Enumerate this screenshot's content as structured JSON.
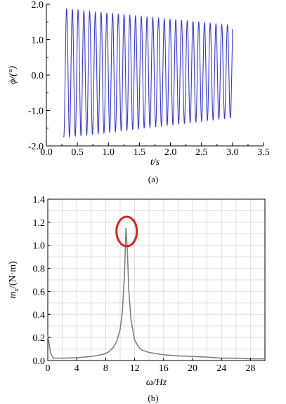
{
  "chart_data": [
    {
      "type": "line",
      "caption": "(a)",
      "xlabel": "t/s",
      "ylabel": "ϕ/(°)",
      "xlim": [
        0.0,
        3.5
      ],
      "ylim": [
        -2.0,
        2.0
      ],
      "xticks": [
        "0.0",
        "0.5",
        "1.0",
        "1.5",
        "2.0",
        "2.5",
        "3.0",
        "3.5"
      ],
      "yticks": [
        "-2.0",
        "-1.0",
        "0.0",
        "1.0",
        "2.0"
      ],
      "grid": false,
      "color": "#3a3ad8",
      "series": [
        {
          "t_start": 0.28,
          "t_end": 3.0,
          "initial_value": -1.72,
          "frequency_hz": 10.8,
          "amplitude_start": 1.82,
          "amplitude_end": 1.3,
          "offset_start": 0.05,
          "offset_end": 0.1,
          "final_value": 1.3
        }
      ]
    },
    {
      "type": "line",
      "caption": "(b)",
      "xlabel": "ω/Hz",
      "ylabel": "m_x/(N·m)",
      "xlim": [
        0,
        30
      ],
      "ylim": [
        0.0,
        1.4
      ],
      "xticks": [
        "0",
        "4",
        "8",
        "12",
        "16",
        "20",
        "24",
        "28"
      ],
      "yticks": [
        "0.0",
        "0.2",
        "0.4",
        "0.6",
        "0.8",
        "1.0",
        "1.2",
        "1.4"
      ],
      "grid": true,
      "color": "#808080",
      "annotation_color": "#e02020",
      "series": [
        {
          "x": [
            0,
            0.4,
            0.8,
            2,
            4,
            6,
            7,
            8,
            8.5,
            9,
            9.5,
            10,
            10.3,
            10.6,
            10.8,
            11.0,
            11.2,
            11.5,
            12,
            12.5,
            13,
            14,
            16,
            18,
            20,
            22,
            24,
            26,
            28,
            30
          ],
          "y": [
            0.22,
            0.06,
            0.02,
            0.02,
            0.025,
            0.035,
            0.045,
            0.06,
            0.08,
            0.11,
            0.16,
            0.27,
            0.42,
            0.75,
            1.15,
            0.95,
            0.6,
            0.35,
            0.18,
            0.12,
            0.09,
            0.07,
            0.05,
            0.04,
            0.035,
            0.03,
            0.02,
            0.02,
            0.015,
            0.015
          ]
        }
      ],
      "highlight": {
        "x": 10.9,
        "y": 1.12
      }
    }
  ]
}
